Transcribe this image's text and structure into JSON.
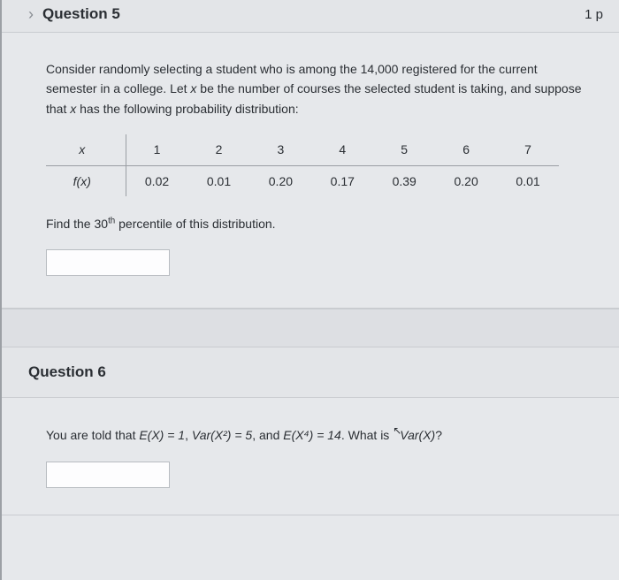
{
  "question5": {
    "title": "Question 5",
    "points": "1 p",
    "intro_part1": "Consider randomly selecting a student who is among the 14,000 registered for the current semester in a college. Let ",
    "intro_var1": "x",
    "intro_part2": " be the number of courses the selected student is taking, and suppose that ",
    "intro_var2": "x",
    "intro_part3": " has the following probability distribution:",
    "table": {
      "row_label_x": "x",
      "row_label_fx": "f(x)",
      "x_values": [
        "1",
        "2",
        "3",
        "4",
        "5",
        "6",
        "7"
      ],
      "fx_values": [
        "0.02",
        "0.01",
        "0.20",
        "0.17",
        "0.39",
        "0.20",
        "0.01"
      ]
    },
    "find_part1": "Find the 30",
    "find_sup": "th",
    "find_part2": " percentile of this distribution."
  },
  "question6": {
    "title": "Question 6",
    "text_part1": "You are told that ",
    "eq1": "E(X) = 1",
    "sep1": ", ",
    "eq2": "Var(X²) = 5",
    "sep2": ", and ",
    "eq3": "E(X⁴) = 14",
    "sep3": ". What is ",
    "eq4": "Var(X)",
    "end": "?"
  }
}
